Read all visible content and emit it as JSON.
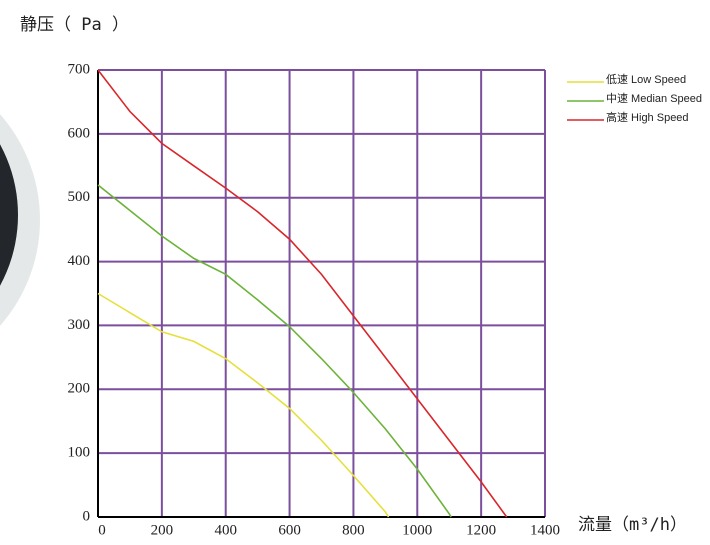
{
  "chart_data": {
    "type": "line",
    "y_label": "静压（ Pa ）",
    "x_label": "流量（m³/h）",
    "xlim": [
      0,
      1400
    ],
    "xticks": [
      0,
      200,
      400,
      600,
      800,
      1000,
      1200,
      1400
    ],
    "ylim": [
      0,
      700
    ],
    "yticks": [
      0,
      100,
      200,
      300,
      400,
      500,
      600,
      700
    ],
    "grid": true,
    "grid_color": "#7b4f9d",
    "legend": "top-right",
    "series": [
      {
        "name": "低速 Low Speed",
        "color": "#e6df3c",
        "x": [
          0,
          100,
          200,
          300,
          400,
          500,
          600,
          700,
          800,
          900,
          910
        ],
        "values": [
          350,
          320,
          290,
          275,
          248,
          210,
          170,
          120,
          65,
          8,
          0
        ]
      },
      {
        "name": "中速 Median Speed",
        "color": "#6cb33a",
        "x": [
          0,
          100,
          200,
          300,
          400,
          500,
          600,
          700,
          800,
          900,
          1000,
          1100,
          1106
        ],
        "values": [
          520,
          480,
          440,
          405,
          380,
          340,
          298,
          248,
          195,
          138,
          75,
          5,
          0
        ]
      },
      {
        "name": "高速 High Speed",
        "color": "#d9262a",
        "x": [
          0,
          100,
          200,
          300,
          400,
          500,
          600,
          700,
          800,
          900,
          1000,
          1100,
          1200,
          1280
        ],
        "values": [
          700,
          635,
          585,
          550,
          515,
          478,
          435,
          380,
          315,
          250,
          185,
          120,
          55,
          0
        ]
      }
    ]
  }
}
